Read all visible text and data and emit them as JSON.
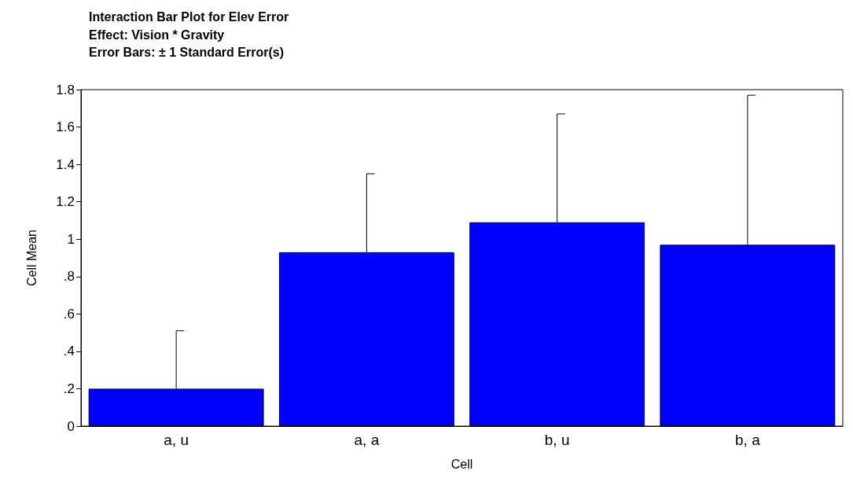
{
  "chart_data": {
    "type": "bar",
    "title": "Interaction Bar Plot for Elev Error",
    "subtitle": "Effect: Vision * Gravity\nError Bars: ± 1 Standard Error(s)",
    "xlabel": "Cell",
    "ylabel": "Cell Mean",
    "categories": [
      "a, u",
      "a, a",
      "b, u",
      "b, a"
    ],
    "values": [
      0.2,
      0.93,
      1.09,
      0.97
    ],
    "errors": [
      [
        0.2,
        0.51
      ],
      [
        0.93,
        1.35
      ],
      [
        1.09,
        1.67
      ],
      [
        0.97,
        1.77
      ]
    ],
    "color": "#0000ff",
    "ylim": [
      0,
      1.8
    ],
    "yticks": [
      0,
      {
        "value": 0.2,
        "label": ".2"
      },
      {
        "value": 0.4,
        "label": ".4"
      },
      {
        "value": 0.6,
        "label": ".6"
      },
      {
        "value": 0.8,
        "label": ".8"
      },
      1,
      1.2,
      1.4,
      1.6,
      1.8
    ],
    "grid": false
  }
}
